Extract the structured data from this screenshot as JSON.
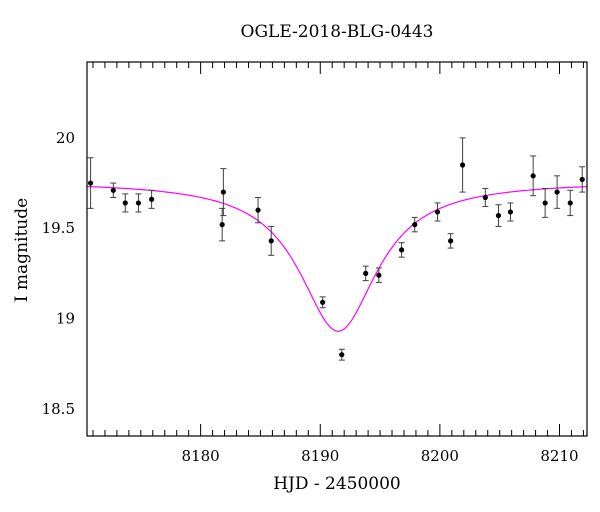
{
  "chart_data": {
    "type": "scatter",
    "title": "OGLE-2018-BLG-0443",
    "xlabel": "HJD - 2450000",
    "ylabel": "I magnitude",
    "xlim": [
      8170.5,
      8212.3
    ],
    "ylim": [
      20.42,
      18.35
    ],
    "y_inverted": true,
    "x_ticks": [
      8180,
      8190,
      8200,
      8210
    ],
    "x_tick_labels": [
      "8180",
      "8190",
      "8200",
      "8210"
    ],
    "y_ticks": [
      18.5,
      19,
      19.5,
      20
    ],
    "y_tick_labels": [
      "18.5",
      "19",
      "19.5",
      "20"
    ],
    "grid": false,
    "legend": "none",
    "colors": {
      "model": "#ff00ff",
      "points": "#000000",
      "errorbars": "#404040"
    },
    "series": [
      {
        "kind": "points_with_errors",
        "points": [
          {
            "x": 8170.8,
            "y": 19.75,
            "err": 0.14
          },
          {
            "x": 8172.7,
            "y": 19.71,
            "err": 0.04
          },
          {
            "x": 8173.7,
            "y": 19.64,
            "err": 0.05
          },
          {
            "x": 8174.8,
            "y": 19.64,
            "err": 0.05
          },
          {
            "x": 8175.9,
            "y": 19.66,
            "err": 0.05
          },
          {
            "x": 8181.8,
            "y": 19.52,
            "err": 0.09
          },
          {
            "x": 8181.9,
            "y": 19.7,
            "err": 0.13
          },
          {
            "x": 8184.8,
            "y": 19.6,
            "err": 0.07
          },
          {
            "x": 8185.9,
            "y": 19.43,
            "err": 0.08
          },
          {
            "x": 8190.2,
            "y": 19.09,
            "err": 0.03
          },
          {
            "x": 8191.8,
            "y": 18.8,
            "err": 0.03
          },
          {
            "x": 8193.8,
            "y": 19.25,
            "err": 0.04
          },
          {
            "x": 8194.9,
            "y": 19.24,
            "err": 0.04
          },
          {
            "x": 8196.8,
            "y": 19.38,
            "err": 0.04
          },
          {
            "x": 8197.9,
            "y": 19.52,
            "err": 0.04
          },
          {
            "x": 8199.8,
            "y": 19.59,
            "err": 0.05
          },
          {
            "x": 8200.9,
            "y": 19.43,
            "err": 0.04
          },
          {
            "x": 8201.9,
            "y": 19.85,
            "err": 0.15
          },
          {
            "x": 8203.8,
            "y": 19.67,
            "err": 0.05
          },
          {
            "x": 8204.9,
            "y": 19.57,
            "err": 0.06
          },
          {
            "x": 8205.9,
            "y": 19.59,
            "err": 0.05
          },
          {
            "x": 8207.8,
            "y": 19.79,
            "err": 0.11
          },
          {
            "x": 8208.8,
            "y": 19.64,
            "err": 0.08
          },
          {
            "x": 8209.8,
            "y": 19.7,
            "err": 0.09
          },
          {
            "x": 8210.9,
            "y": 19.64,
            "err": 0.07
          },
          {
            "x": 8211.9,
            "y": 19.77,
            "err": 0.07
          }
        ]
      },
      {
        "kind": "model_curve",
        "model": {
          "baseline": 19.76,
          "peak_time": 8191.5,
          "peak_mag": 18.93,
          "timescale": 4.0
        }
      }
    ]
  }
}
